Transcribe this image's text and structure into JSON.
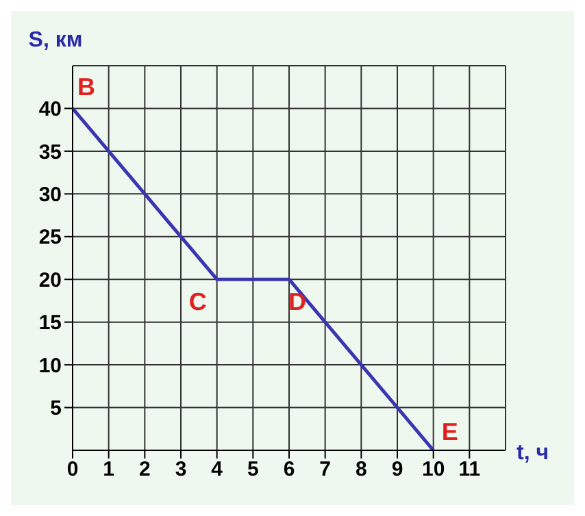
{
  "chart_data": {
    "type": "line",
    "xlabel": "t, ч",
    "ylabel": "S, км",
    "x": [
      0,
      4,
      6,
      10
    ],
    "series": [
      {
        "color": "#3a35b0",
        "values": [
          40,
          20,
          20,
          0
        ]
      }
    ],
    "xlim": [
      0,
      12
    ],
    "xticks": [
      0,
      1,
      2,
      3,
      4,
      5,
      6,
      7,
      8,
      9,
      10,
      11
    ],
    "ylim": [
      0,
      45
    ],
    "yticks": [
      5,
      10,
      15,
      20,
      25,
      30,
      35,
      40
    ],
    "grid": true,
    "marker": "none",
    "line_style": "solid",
    "annotations": [
      {
        "text": "B",
        "x": 0,
        "y": 40
      },
      {
        "text": "C",
        "x": 4,
        "y": 20
      },
      {
        "text": "D",
        "x": 6,
        "y": 20
      },
      {
        "text": "E",
        "x": 10,
        "y": 0
      }
    ]
  }
}
